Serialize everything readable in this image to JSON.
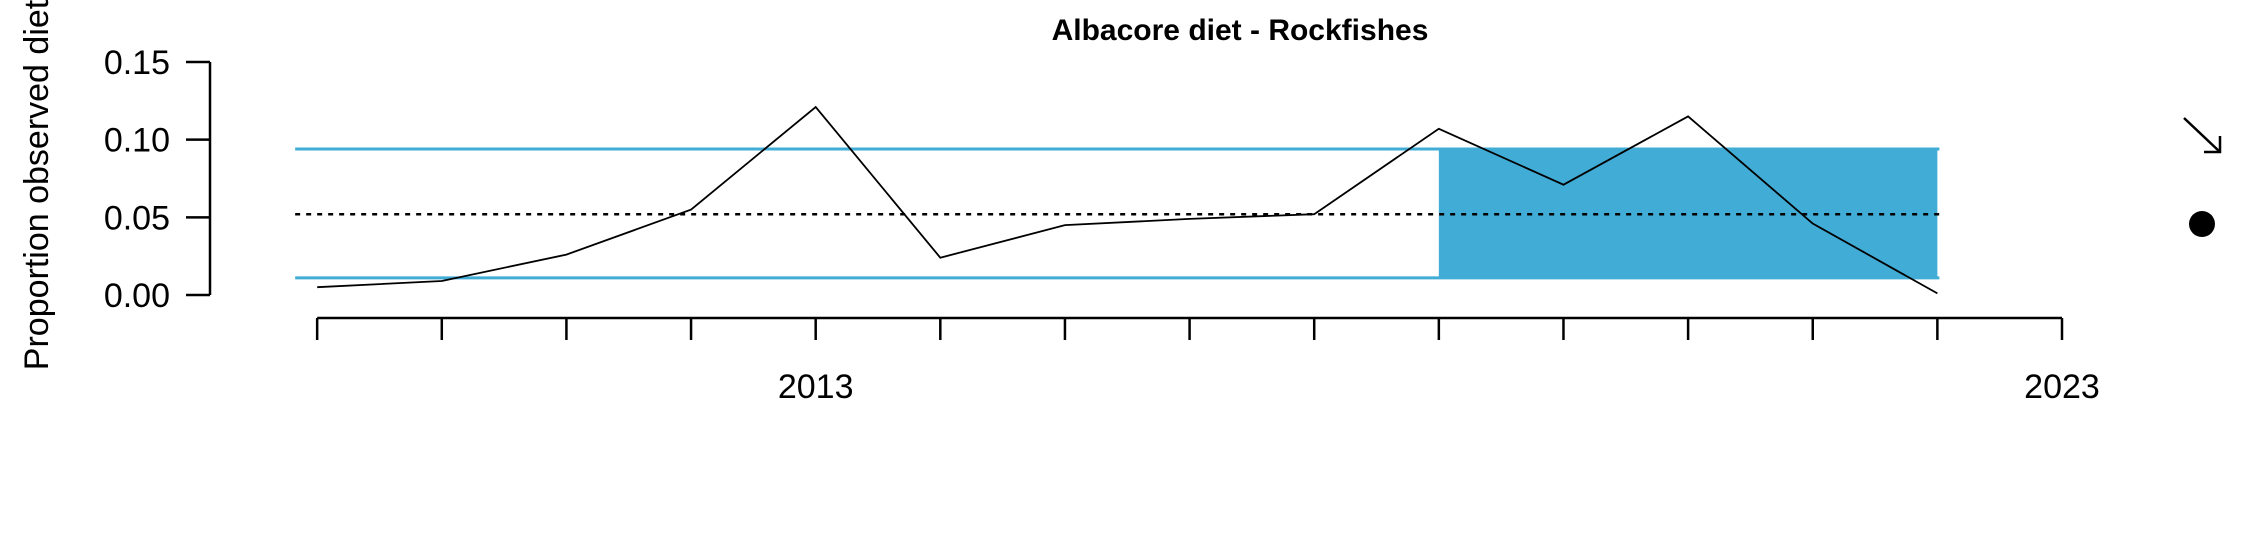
{
  "chart_data": {
    "type": "line",
    "title": "Albacore diet - Rockfishes",
    "ylabel": "Proportion observed diet",
    "xlabel": "",
    "x": [
      2009,
      2010,
      2011,
      2012,
      2013,
      2014,
      2015,
      2016,
      2017,
      2018,
      2019,
      2020,
      2021,
      2022
    ],
    "series": [
      {
        "values": [
          0.005,
          0.009,
          0.026,
          0.055,
          0.121,
          0.024,
          0.045,
          0.049,
          0.052,
          0.107,
          0.071,
          0.115,
          0.046,
          0.001
        ]
      }
    ],
    "mean": 0.052,
    "upper_sd": 0.094,
    "lower_sd": 0.011,
    "highlight_range": [
      2018,
      2022
    ],
    "xlim": [
      2008.75,
      2023
    ],
    "ylim": [
      0,
      0.15
    ],
    "y_ticks": [
      0,
      0.05,
      0.1,
      0.15
    ],
    "y_tick_labels": [
      "0.00",
      "0.05",
      "0.10",
      "0.15"
    ],
    "x_ticks": [
      2009,
      2010,
      2011,
      2012,
      2013,
      2014,
      2015,
      2016,
      2017,
      2018,
      2019,
      2020,
      2021,
      2022,
      2023
    ],
    "x_tick_labels": [
      {
        "year": 2013,
        "label": "2013"
      },
      {
        "year": 2023,
        "label": "2023"
      }
    ],
    "trend_indicator": "arrow-down-right",
    "mean_indicator": "dot",
    "colors": {
      "band": "#41acd6",
      "line": "#000000",
      "mean_line": "#000000"
    },
    "grid": false,
    "legend": "none"
  }
}
